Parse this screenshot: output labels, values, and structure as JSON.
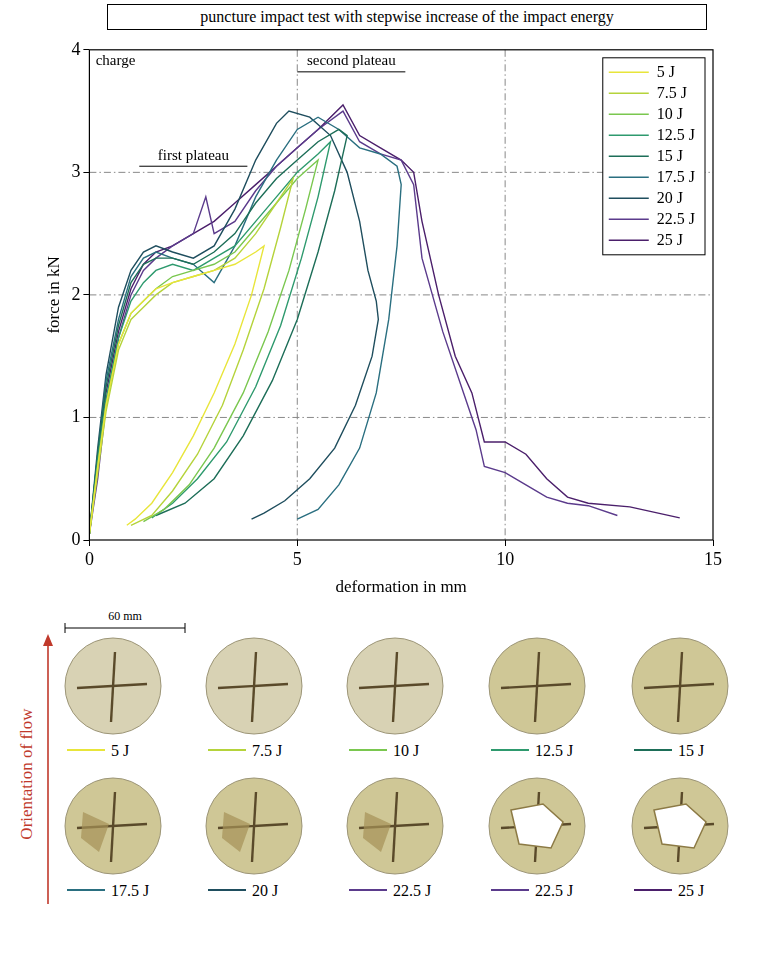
{
  "chart_data": {
    "type": "line",
    "title": "puncture impact test with stepwise increase of the impact energy",
    "x_label": "deformation in mm",
    "y_label": "force in kN",
    "xlim": [
      0,
      15
    ],
    "xticks": [
      0,
      5,
      10,
      15
    ],
    "ylim": [
      0,
      4
    ],
    "yticks": [
      0,
      1,
      2,
      3,
      4
    ],
    "grid": true,
    "legend": "upper right",
    "annotations": [
      {
        "text": "charge",
        "x": 0.15,
        "y": 3.85
      },
      {
        "text": "first plateau",
        "x": [
          1.2,
          3.8
        ],
        "y": 3.05
      },
      {
        "text": "second plateau",
        "x": [
          5.0,
          7.6
        ],
        "y": 3.82
      }
    ],
    "series": [
      {
        "name": "5 J",
        "color": "#e8e53a",
        "x": [
          0,
          0.2,
          0.4,
          0.7,
          1.0,
          1.3,
          1.6,
          2.0,
          2.5,
          3.0,
          3.5,
          4.0,
          4.2,
          3.9,
          3.5,
          3.0,
          2.5,
          2.0,
          1.5,
          1.1,
          0.9
        ],
        "values": [
          0.05,
          0.6,
          1.1,
          1.6,
          1.85,
          1.95,
          2.05,
          2.1,
          2.15,
          2.2,
          2.25,
          2.35,
          2.4,
          2.0,
          1.6,
          1.2,
          0.85,
          0.55,
          0.3,
          0.17,
          0.12
        ]
      },
      {
        "name": "7.5 J",
        "color": "#b5d33b",
        "x": [
          0,
          0.2,
          0.4,
          0.7,
          1.0,
          1.3,
          1.6,
          2.0,
          2.5,
          3.0,
          3.5,
          4.0,
          4.5,
          4.9,
          4.6,
          4.2,
          3.7,
          3.2,
          2.6,
          2.0,
          1.5,
          1.0
        ],
        "values": [
          0.05,
          0.55,
          1.05,
          1.55,
          1.8,
          1.9,
          2.0,
          2.1,
          2.15,
          2.2,
          2.3,
          2.5,
          2.75,
          2.95,
          2.55,
          2.05,
          1.55,
          1.1,
          0.7,
          0.4,
          0.2,
          0.12
        ]
      },
      {
        "name": "10 J",
        "color": "#7ac74f",
        "x": [
          0,
          0.2,
          0.4,
          0.7,
          1.0,
          1.3,
          1.6,
          2.0,
          2.5,
          3.0,
          3.5,
          4.0,
          4.5,
          5.0,
          5.5,
          5.2,
          4.8,
          4.3,
          3.7,
          3.0,
          2.4,
          1.8,
          1.3
        ],
        "values": [
          0.05,
          0.6,
          1.1,
          1.6,
          1.85,
          1.95,
          2.05,
          2.15,
          2.2,
          2.25,
          2.35,
          2.55,
          2.75,
          2.95,
          3.1,
          2.7,
          2.2,
          1.7,
          1.2,
          0.75,
          0.45,
          0.25,
          0.15
        ]
      },
      {
        "name": "12.5 J",
        "color": "#2e9a6e",
        "x": [
          0,
          0.2,
          0.4,
          0.7,
          1.0,
          1.3,
          1.6,
          2.0,
          2.5,
          3.0,
          3.5,
          4.0,
          4.5,
          5.0,
          5.5,
          5.8,
          5.5,
          5.1,
          4.6,
          4.0,
          3.3,
          2.6,
          2.0,
          1.5
        ],
        "values": [
          0.05,
          0.65,
          1.15,
          1.65,
          1.95,
          2.1,
          2.2,
          2.25,
          2.2,
          2.3,
          2.4,
          2.6,
          2.8,
          3.0,
          3.15,
          3.25,
          2.8,
          2.3,
          1.75,
          1.25,
          0.8,
          0.5,
          0.3,
          0.18
        ]
      },
      {
        "name": "15 J",
        "color": "#1d6e58",
        "x": [
          0,
          0.2,
          0.4,
          0.7,
          1.0,
          1.3,
          1.6,
          2.0,
          2.5,
          3.0,
          3.5,
          4.0,
          4.5,
          5.0,
          5.5,
          6.0,
          6.2,
          5.9,
          5.5,
          5.0,
          4.4,
          3.7,
          3.0,
          2.3,
          1.6
        ],
        "values": [
          0.05,
          0.7,
          1.25,
          1.75,
          2.1,
          2.25,
          2.3,
          2.3,
          2.25,
          2.35,
          2.5,
          2.75,
          2.95,
          3.1,
          3.25,
          3.35,
          3.3,
          2.85,
          2.35,
          1.8,
          1.3,
          0.85,
          0.5,
          0.3,
          0.2
        ]
      },
      {
        "name": "17.5 J",
        "color": "#2a6f80",
        "x": [
          0,
          0.2,
          0.4,
          0.7,
          1.0,
          1.3,
          1.6,
          2.0,
          2.5,
          3.0,
          3.5,
          4.0,
          4.5,
          5.0,
          5.5,
          6.0,
          6.5,
          7.0,
          7.4,
          7.5,
          7.4,
          7.2,
          6.9,
          6.5,
          6.0,
          5.5,
          5.0
        ],
        "values": [
          0.05,
          0.7,
          1.3,
          1.8,
          2.15,
          2.3,
          2.35,
          2.3,
          2.25,
          2.1,
          2.4,
          2.8,
          3.1,
          3.35,
          3.45,
          3.35,
          3.2,
          3.15,
          3.05,
          2.9,
          2.4,
          1.8,
          1.2,
          0.75,
          0.45,
          0.25,
          0.17
        ]
      },
      {
        "name": "20 J",
        "color": "#1f4e5e",
        "x": [
          0,
          0.2,
          0.4,
          0.7,
          1.0,
          1.3,
          1.6,
          2.0,
          2.5,
          3.0,
          3.5,
          4.0,
          4.5,
          4.8,
          5.3,
          5.8,
          6.2,
          6.5,
          6.7,
          6.9,
          6.95,
          6.8,
          6.4,
          5.9,
          5.3,
          4.7,
          4.2,
          3.9
        ],
        "values": [
          0.05,
          0.75,
          1.35,
          1.9,
          2.2,
          2.35,
          2.4,
          2.35,
          2.3,
          2.4,
          2.7,
          3.1,
          3.4,
          3.5,
          3.45,
          3.3,
          3.0,
          2.6,
          2.2,
          1.95,
          1.8,
          1.5,
          1.1,
          0.75,
          0.5,
          0.32,
          0.22,
          0.17
        ]
      },
      {
        "name": "22.5 J",
        "color": "#5b3b8c",
        "x": [
          0,
          0.2,
          0.4,
          0.7,
          1.0,
          1.3,
          1.6,
          2.0,
          2.5,
          2.8,
          3.0,
          3.5,
          4.0,
          4.5,
          5.0,
          5.5,
          6.1,
          6.5,
          7.0,
          7.5,
          7.8,
          8.0,
          8.5,
          9.0,
          9.3,
          9.5,
          10.0,
          10.5,
          11.0,
          11.5,
          12.0,
          12.7
        ],
        "values": [
          0.05,
          0.5,
          1.1,
          1.65,
          2.0,
          2.2,
          2.3,
          2.4,
          2.5,
          2.8,
          2.5,
          2.6,
          2.85,
          3.05,
          3.2,
          3.35,
          3.5,
          3.25,
          3.15,
          3.1,
          2.9,
          2.3,
          1.7,
          1.2,
          0.9,
          0.6,
          0.55,
          0.45,
          0.35,
          0.3,
          0.28,
          0.2
        ]
      },
      {
        "name": "25 J",
        "color": "#4b1f6b",
        "x": [
          0,
          0.2,
          0.4,
          0.7,
          1.0,
          1.3,
          1.6,
          2.0,
          2.5,
          3.0,
          3.5,
          4.0,
          4.5,
          5.0,
          5.5,
          6.1,
          6.5,
          7.0,
          7.5,
          7.8,
          8.0,
          8.4,
          8.8,
          9.2,
          9.5,
          10.0,
          10.5,
          11.0,
          11.5,
          12.0,
          13.0,
          14.2
        ],
        "values": [
          0.05,
          0.6,
          1.2,
          1.7,
          2.05,
          2.25,
          2.35,
          2.4,
          2.5,
          2.6,
          2.75,
          2.9,
          3.05,
          3.2,
          3.35,
          3.55,
          3.3,
          3.2,
          3.1,
          3.0,
          2.6,
          2.0,
          1.5,
          1.2,
          0.8,
          0.8,
          0.7,
          0.5,
          0.35,
          0.3,
          0.27,
          0.18
        ]
      }
    ]
  },
  "specimens": {
    "scale_bar": "60 mm",
    "flow_label": "Orientation of flow",
    "captions": [
      {
        "label": "5 J",
        "color": "#e8e53a"
      },
      {
        "label": "7.5 J",
        "color": "#b5d33b"
      },
      {
        "label": "10 J",
        "color": "#7ac74f"
      },
      {
        "label": "12.5 J",
        "color": "#2e9a6e"
      },
      {
        "label": "15 J",
        "color": "#1d6e58"
      },
      {
        "label": "17.5 J",
        "color": "#2a6f80"
      },
      {
        "label": "20 J",
        "color": "#1f4e5e"
      },
      {
        "label": "22.5 J",
        "color": "#5b3b8c"
      },
      {
        "label": "22.5 J",
        "color": "#5b3b8c"
      },
      {
        "label": "25 J",
        "color": "#4b1f6b"
      }
    ]
  }
}
